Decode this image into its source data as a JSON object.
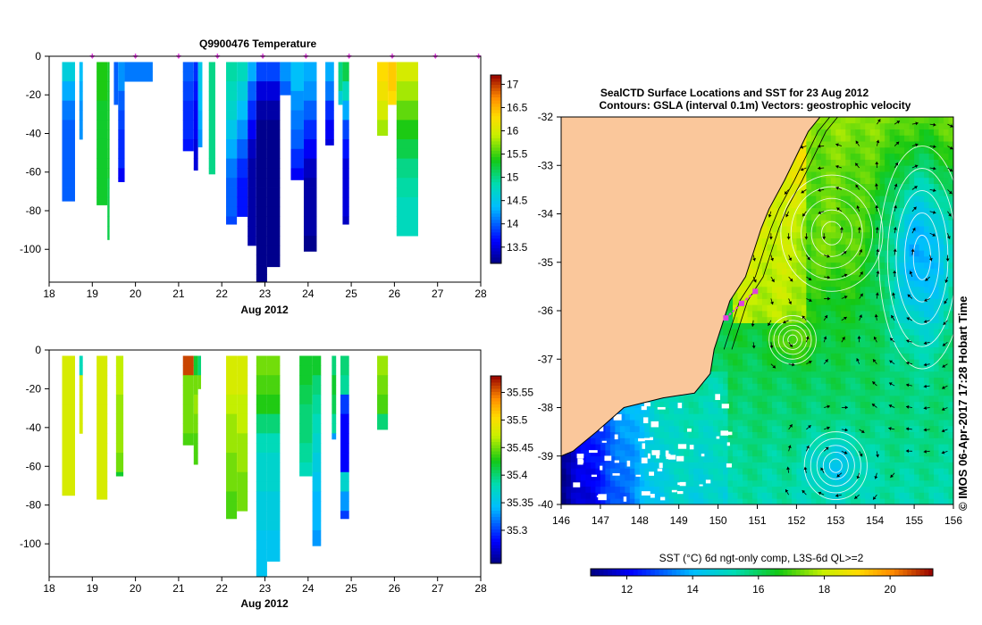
{
  "top_panel": {
    "title": "Q9900476  Temperature",
    "xlabel": "Aug 2012"
  },
  "bottom_panel": {
    "title": "",
    "xlabel": "Aug 2012"
  },
  "map_panel": {
    "title_line1": "SealCTD Surface Locations and SST for 23 Aug 2012",
    "title_line2": "Contours: GSLA (interval 0.1m) Vectors: geostrophic velocity",
    "colorbar_label": "SST (°C) 6d ngt-only comp, L3S-6d QL>=2"
  },
  "credit": "© IMOS 06-Apr-2017 17:28 Hobart Time",
  "colors": {
    "land": "#fac79b",
    "track": "#e040e0",
    "cloud": "#ffffff"
  },
  "chart_data": [
    {
      "type": "heatmap",
      "name": "temperature-section",
      "title": "Q9900476  Temperature",
      "xlabel": "Aug 2012",
      "ylabel": "",
      "xlim": [
        18,
        28
      ],
      "ylim": [
        -117,
        0
      ],
      "xticks": [
        18,
        19,
        20,
        21,
        22,
        23,
        24,
        25,
        26,
        27,
        28
      ],
      "yticks": [
        0,
        -20,
        -40,
        -60,
        -80,
        -100
      ],
      "colorbar": {
        "min": 13.15,
        "max": 17.2,
        "ticks": [
          13.5,
          14,
          14.5,
          15,
          15.5,
          16,
          16.5,
          17
        ]
      },
      "profile_markers": [
        19,
        20,
        21,
        21.9,
        22.95,
        23.95,
        24.95,
        25.95,
        26.95,
        27.95
      ],
      "profiles": [
        {
          "start": 18.3,
          "end": 18.6,
          "max_depth": 75,
          "values": [
            14.6,
            14.3,
            14.1,
            14.0,
            14.0,
            14.0,
            14.0,
            14.0
          ]
        },
        {
          "start": 18.7,
          "end": 18.78,
          "max_depth": 43,
          "values": [
            14.4,
            14.3,
            14.2,
            14.2
          ]
        },
        {
          "start": 19.1,
          "end": 19.35,
          "max_depth": 77,
          "values": [
            15.4,
            15.4,
            15.3,
            15.3,
            15.3,
            15.3,
            15.3,
            15.3
          ]
        },
        {
          "start": 19.35,
          "end": 19.4,
          "max_depth": 95,
          "values": [
            15.3,
            15.3,
            15.3,
            15.3,
            15.3,
            15.2,
            15.2,
            15.2
          ]
        },
        {
          "start": 19.5,
          "end": 19.6,
          "max_depth": 25,
          "values": [
            14.0,
            14.0
          ]
        },
        {
          "start": 19.6,
          "end": 19.75,
          "max_depth": 65,
          "values": [
            14.2,
            14.0,
            13.9,
            13.8,
            13.8,
            13.6
          ]
        },
        {
          "start": 19.75,
          "end": 20.4,
          "max_depth": 13,
          "values": [
            14.1
          ]
        },
        {
          "start": 21.1,
          "end": 21.35,
          "max_depth": 49,
          "values": [
            14.0,
            13.9,
            13.8,
            13.8,
            13.7
          ]
        },
        {
          "start": 21.35,
          "end": 21.45,
          "max_depth": 59,
          "values": [
            13.8,
            13.7,
            13.6,
            13.6,
            13.5,
            13.5
          ]
        },
        {
          "start": 21.45,
          "end": 21.55,
          "max_depth": 47,
          "values": [
            14.5,
            14.4,
            14.3,
            14.2
          ]
        },
        {
          "start": 21.7,
          "end": 21.85,
          "max_depth": 61,
          "values": [
            15.0,
            15.0,
            15.0,
            15.0,
            15.0,
            15.0
          ]
        },
        {
          "start": 22.1,
          "end": 22.35,
          "max_depth": 87,
          "values": [
            14.9,
            14.8,
            14.7,
            14.5,
            14.3,
            14.1,
            14.0,
            14.0,
            13.9
          ]
        },
        {
          "start": 22.35,
          "end": 22.6,
          "max_depth": 83,
          "values": [
            14.8,
            14.6,
            14.4,
            14.2,
            14.0,
            13.8,
            13.7,
            13.7
          ]
        },
        {
          "start": 22.6,
          "end": 22.8,
          "max_depth": 98,
          "values": [
            14.3,
            14.0,
            13.8,
            13.6,
            13.4,
            13.3,
            13.3,
            13.3,
            13.3,
            13.3
          ]
        },
        {
          "start": 22.8,
          "end": 23.05,
          "max_depth": 117,
          "values": [
            13.9,
            13.5,
            13.3,
            13.2,
            13.2,
            13.2,
            13.2,
            13.2,
            13.2,
            13.2,
            13.2,
            13.2
          ]
        },
        {
          "start": 23.05,
          "end": 23.35,
          "max_depth": 109,
          "values": [
            13.9,
            13.5,
            13.3,
            13.2,
            13.2,
            13.2,
            13.2,
            13.2,
            13.2,
            13.2,
            13.2
          ]
        },
        {
          "start": 23.35,
          "end": 23.6,
          "max_depth": 20,
          "values": [
            14.2,
            14.0
          ]
        },
        {
          "start": 23.6,
          "end": 23.9,
          "max_depth": 64,
          "values": [
            14.4,
            14.2,
            14.1,
            14.0,
            13.8,
            13.6
          ]
        },
        {
          "start": 23.9,
          "end": 24.2,
          "max_depth": 101,
          "values": [
            14.3,
            14.2,
            14.0,
            13.8,
            13.6,
            13.4,
            13.3,
            13.3,
            13.3,
            13.2
          ]
        },
        {
          "start": 24.4,
          "end": 24.6,
          "max_depth": 46,
          "values": [
            14.3,
            14.1,
            13.8,
            13.6,
            13.5
          ]
        },
        {
          "start": 24.7,
          "end": 24.8,
          "max_depth": 25,
          "values": [
            15.0,
            14.6
          ]
        },
        {
          "start": 24.8,
          "end": 24.95,
          "max_depth": 87,
          "values": [
            15.2,
            14.8,
            14.3,
            13.9,
            13.7,
            13.5,
            13.5,
            13.5,
            13.4
          ]
        },
        {
          "start": 25.6,
          "end": 25.85,
          "max_depth": 41,
          "values": [
            16.3,
            16.2,
            16.0,
            15.8
          ]
        },
        {
          "start": 25.85,
          "end": 26.05,
          "max_depth": 25,
          "values": [
            16.4,
            16.3
          ]
        },
        {
          "start": 26.05,
          "end": 26.55,
          "max_depth": 93,
          "values": [
            16.0,
            15.8,
            15.6,
            15.4,
            15.2,
            15.0,
            14.9,
            14.8,
            14.8
          ]
        }
      ]
    },
    {
      "type": "heatmap",
      "name": "salinity-section",
      "title": "",
      "xlabel": "Aug 2012",
      "ylabel": "",
      "xlim": [
        18,
        28
      ],
      "ylim": [
        -117,
        0
      ],
      "xticks": [
        18,
        19,
        20,
        21,
        22,
        23,
        24,
        25,
        26,
        27,
        28
      ],
      "yticks": [
        0,
        -20,
        -40,
        -60,
        -80,
        -100
      ],
      "colorbar": {
        "min": 35.24,
        "max": 35.58,
        "ticks": [
          35.3,
          35.35,
          35.4,
          35.45,
          35.5,
          35.55
        ]
      },
      "profiles": [
        {
          "start": 18.3,
          "end": 18.6,
          "max_depth": 75,
          "values": [
            35.48,
            35.48,
            35.48,
            35.48,
            35.48,
            35.48,
            35.48,
            35.48
          ]
        },
        {
          "start": 18.7,
          "end": 18.78,
          "max_depth": 43,
          "values": [
            35.38,
            35.48,
            35.48,
            35.48
          ]
        },
        {
          "start": 19.1,
          "end": 19.35,
          "max_depth": 77,
          "values": [
            35.48,
            35.48,
            35.48,
            35.48,
            35.48,
            35.48,
            35.48,
            35.48
          ]
        },
        {
          "start": 19.55,
          "end": 19.72,
          "max_depth": 65,
          "values": [
            35.47,
            35.47,
            35.46,
            35.46,
            35.46,
            35.45,
            35.42
          ]
        },
        {
          "start": 21.1,
          "end": 21.35,
          "max_depth": 49,
          "values": [
            35.56,
            35.45,
            35.45,
            35.45,
            35.44
          ]
        },
        {
          "start": 21.35,
          "end": 21.45,
          "max_depth": 59,
          "values": [
            35.42,
            35.45,
            35.46,
            35.45,
            35.44,
            35.44
          ]
        },
        {
          "start": 21.45,
          "end": 21.52,
          "max_depth": 20,
          "values": [
            35.4,
            35.45
          ]
        },
        {
          "start": 22.1,
          "end": 22.35,
          "max_depth": 87,
          "values": [
            35.48,
            35.48,
            35.47,
            35.46,
            35.46,
            35.45,
            35.45,
            35.44,
            35.44
          ]
        },
        {
          "start": 22.35,
          "end": 22.6,
          "max_depth": 83,
          "values": [
            35.48,
            35.48,
            35.47,
            35.47,
            35.46,
            35.46,
            35.45,
            35.45
          ]
        },
        {
          "start": 22.8,
          "end": 23.05,
          "max_depth": 117,
          "values": [
            35.45,
            35.44,
            35.43,
            35.4,
            35.38,
            35.37,
            35.37,
            35.36,
            35.36,
            35.35,
            35.35,
            35.35
          ]
        },
        {
          "start": 23.05,
          "end": 23.35,
          "max_depth": 109,
          "values": [
            35.45,
            35.44,
            35.43,
            35.4,
            35.38,
            35.37,
            35.37,
            35.36,
            35.36,
            35.35,
            35.35
          ]
        },
        {
          "start": 23.8,
          "end": 24.1,
          "max_depth": 65,
          "values": [
            35.42,
            35.41,
            35.4,
            35.4,
            35.39,
            35.38
          ]
        },
        {
          "start": 24.1,
          "end": 24.3,
          "max_depth": 101,
          "values": [
            35.42,
            35.4,
            35.39,
            35.38,
            35.37,
            35.36,
            35.35,
            35.34,
            35.34,
            35.33
          ]
        },
        {
          "start": 24.55,
          "end": 24.65,
          "max_depth": 46,
          "values": [
            35.4,
            35.42,
            35.41,
            35.39,
            35.33
          ]
        },
        {
          "start": 24.75,
          "end": 24.95,
          "max_depth": 87,
          "values": [
            35.4,
            35.39,
            35.3,
            35.28,
            35.28,
            35.28,
            35.37,
            35.33,
            35.3
          ]
        },
        {
          "start": 25.6,
          "end": 25.85,
          "max_depth": 41,
          "values": [
            35.46,
            35.45,
            35.44,
            35.4
          ]
        }
      ]
    },
    {
      "type": "heatmap",
      "name": "sst-map",
      "title": "SealCTD Surface Locations and SST for 23 Aug 2012",
      "subtitle": "Contours: GSLA (interval 0.1m) Vectors: geostrophic velocity",
      "xlabel": "",
      "ylabel": "",
      "xlim": [
        146,
        156
      ],
      "ylim": [
        -40,
        -32
      ],
      "xticks": [
        146,
        147,
        148,
        149,
        150,
        151,
        152,
        153,
        154,
        155,
        156
      ],
      "yticks": [
        -32,
        -33,
        -34,
        -35,
        -36,
        -37,
        -38,
        -39,
        -40
      ],
      "colorbar": {
        "min": 10.9,
        "max": 21.3,
        "ticks": [
          12,
          14,
          16,
          18,
          20
        ],
        "label": "SST (°C) 6d ngt-only comp, L3S-6d QL>=2"
      },
      "seal_track": [
        [
          150.2,
          -36.15
        ],
        [
          150.6,
          -35.85
        ],
        [
          150.95,
          -35.6
        ]
      ],
      "coastline": [
        [
          149.9,
          -32
        ],
        [
          152.6,
          -32
        ],
        [
          152.3,
          -32.3
        ],
        [
          152.0,
          -32.8
        ],
        [
          151.7,
          -33.3
        ],
        [
          151.3,
          -33.9
        ],
        [
          151.1,
          -34.3
        ],
        [
          150.9,
          -34.8
        ],
        [
          150.7,
          -35.3
        ],
        [
          150.3,
          -35.8
        ],
        [
          150.1,
          -36.3
        ],
        [
          149.9,
          -36.8
        ],
        [
          149.8,
          -37.3
        ],
        [
          149.4,
          -37.7
        ],
        [
          148.6,
          -37.8
        ],
        [
          147.6,
          -38.0
        ],
        [
          146.9,
          -38.5
        ],
        [
          146.3,
          -38.9
        ],
        [
          146.0,
          -39.0
        ],
        [
          146.0,
          -32
        ]
      ],
      "eddies": [
        {
          "lon": 152.9,
          "lat": -34.4,
          "rx": 1.3,
          "ry": 1.2,
          "sst": 17.3
        },
        {
          "lon": 155.2,
          "lat": -34.9,
          "rx": 1.1,
          "ry": 2.3,
          "sst": 13.8
        },
        {
          "lon": 151.9,
          "lat": -36.6,
          "rx": 0.6,
          "ry": 0.5,
          "sst": 17.3
        },
        {
          "lon": 153.0,
          "lat": -39.2,
          "rx": 0.8,
          "ry": 0.7,
          "sst": 14.4
        }
      ]
    }
  ]
}
